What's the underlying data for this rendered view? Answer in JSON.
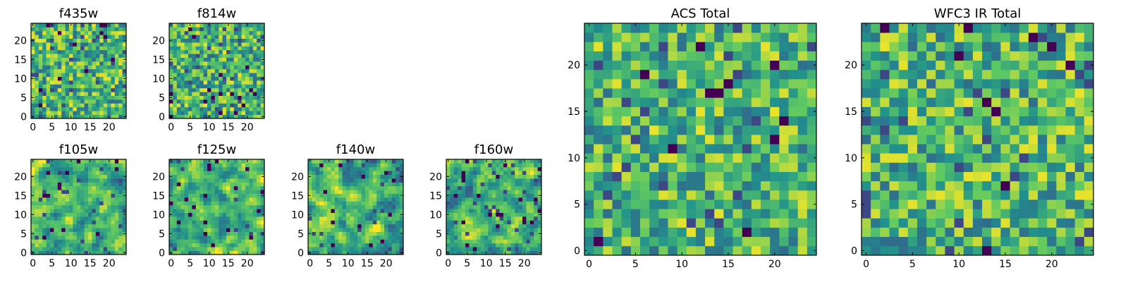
{
  "colormap": [
    "#440154",
    "#3b528b",
    "#21918c",
    "#5ec962",
    "#fde725"
  ],
  "chart_data": [
    {
      "type": "heatmap",
      "title": "f435w",
      "grid_size": 25,
      "xticks": [
        "0",
        "5",
        "10",
        "15",
        "20"
      ],
      "yticks": [
        "0",
        "5",
        "10",
        "15",
        "20"
      ],
      "seed": 11,
      "smooth": 0
    },
    {
      "type": "heatmap",
      "title": "f814w",
      "grid_size": 25,
      "xticks": [
        "0",
        "5",
        "10",
        "15",
        "20"
      ],
      "yticks": [
        "0",
        "5",
        "10",
        "15",
        "20"
      ],
      "seed": 23,
      "smooth": 0
    },
    {
      "type": "heatmap",
      "title": "f105w",
      "grid_size": 25,
      "xticks": [
        "0",
        "5",
        "10",
        "15",
        "20"
      ],
      "yticks": [
        "0",
        "5",
        "10",
        "15",
        "20"
      ],
      "seed": 37,
      "smooth": 1
    },
    {
      "type": "heatmap",
      "title": "f125w",
      "grid_size": 25,
      "xticks": [
        "0",
        "5",
        "10",
        "15",
        "20"
      ],
      "yticks": [
        "0",
        "5",
        "10",
        "15",
        "20"
      ],
      "seed": 41,
      "smooth": 1
    },
    {
      "type": "heatmap",
      "title": "f140w",
      "grid_size": 25,
      "xticks": [
        "0",
        "5",
        "10",
        "15",
        "20"
      ],
      "yticks": [
        "0",
        "5",
        "10",
        "15",
        "20"
      ],
      "seed": 53,
      "smooth": 1
    },
    {
      "type": "heatmap",
      "title": "f160w",
      "grid_size": 25,
      "xticks": [
        "0",
        "5",
        "10",
        "15",
        "20"
      ],
      "yticks": [
        "0",
        "5",
        "10",
        "15",
        "20"
      ],
      "seed": 67,
      "smooth": 1
    },
    {
      "type": "heatmap",
      "title": "ACS Total",
      "grid_size": 25,
      "xticks": [
        "0",
        "5",
        "10",
        "15",
        "20"
      ],
      "yticks": [
        "0",
        "5",
        "10",
        "15",
        "20"
      ],
      "seed": 79,
      "smooth": 0
    },
    {
      "type": "heatmap",
      "title": "WFC3 IR Total",
      "grid_size": 25,
      "xticks": [
        "0",
        "5",
        "10",
        "15",
        "20"
      ],
      "yticks": [
        "0",
        "5",
        "10",
        "15",
        "20"
      ],
      "seed": 97,
      "smooth": 0
    }
  ]
}
